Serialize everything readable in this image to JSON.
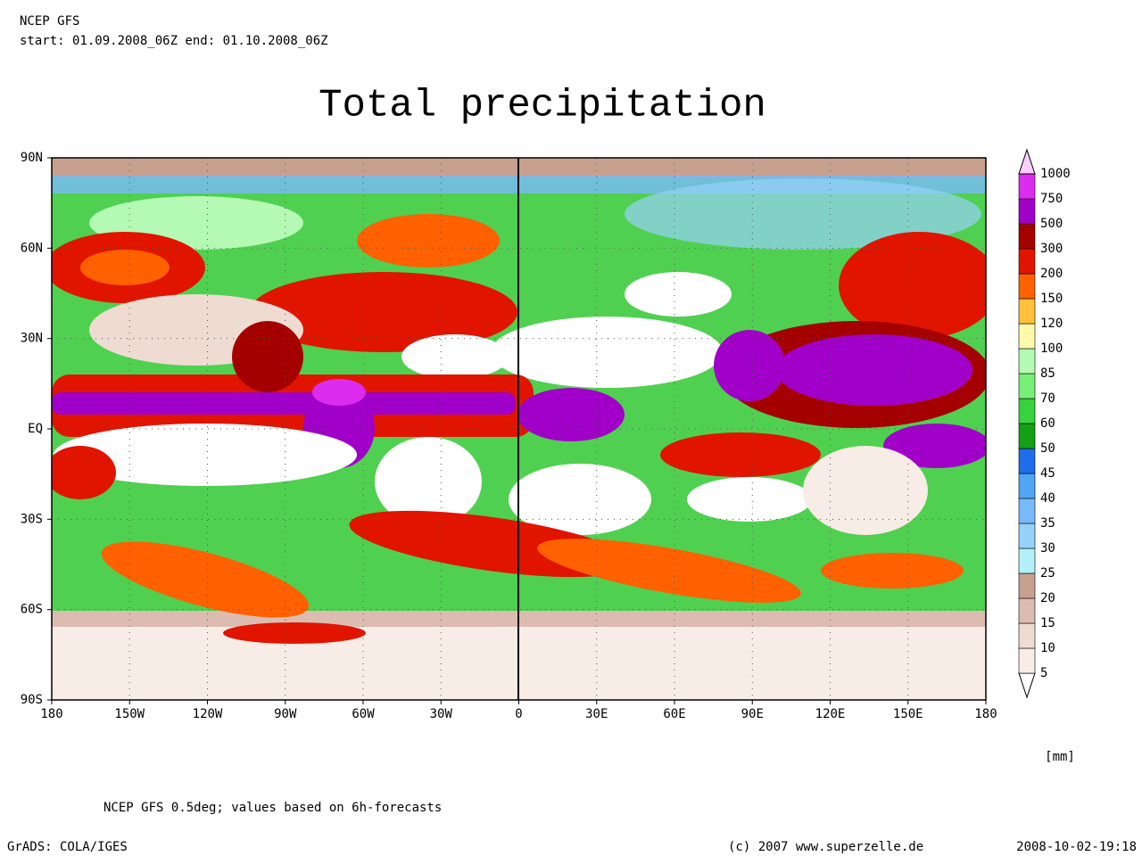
{
  "header": {
    "line1": "NCEP GFS",
    "line2": "start: 01.09.2008_06Z end: 01.10.2008_06Z"
  },
  "title": "Total precipitation",
  "map": {
    "lon_labels": [
      "180",
      "150W",
      "120W",
      "90W",
      "60W",
      "30W",
      "0",
      "30E",
      "60E",
      "90E",
      "120E",
      "150E",
      "180"
    ],
    "lat_labels": [
      "90N",
      "60N",
      "30N",
      "EQ",
      "30S",
      "60S",
      "90S"
    ]
  },
  "legend": {
    "levels": [
      "5",
      "10",
      "15",
      "20",
      "25",
      "30",
      "35",
      "40",
      "45",
      "50",
      "60",
      "70",
      "85",
      "100",
      "120",
      "150",
      "200",
      "300",
      "500",
      "750",
      "1000"
    ],
    "colors": [
      "#ffffff",
      "#f8ece6",
      "#eedcd2",
      "#dcbcb0",
      "#c8a090",
      "#b4f0fa",
      "#96d2fa",
      "#78b9fa",
      "#50a5f5",
      "#1e6eeb",
      "#14a014",
      "#37d23c",
      "#78f078",
      "#b4fab4",
      "#fffaaa",
      "#ffc03c",
      "#ff6000",
      "#e11400",
      "#a50000",
      "#a000c8",
      "#dc2cf0",
      "#fcd0fc"
    ],
    "unit": "[mm]"
  },
  "footer": {
    "note": "NCEP GFS 0.5deg; values based on 6h-forecasts",
    "left": "GrADS: COLA/IGES",
    "center": "(c) 2007 www.superzelle.de",
    "right": "2008-10-02-19:18"
  }
}
